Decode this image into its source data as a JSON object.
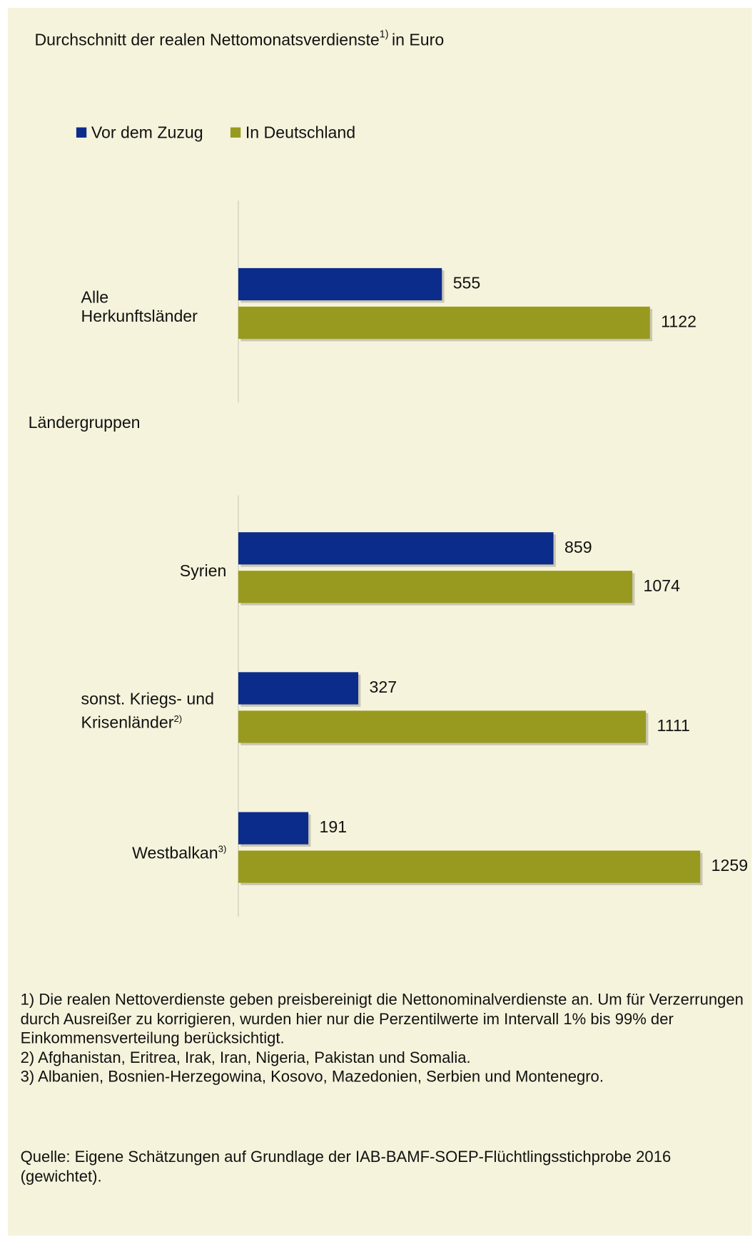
{
  "chart_data": [
    {
      "type": "hbar",
      "title": "Durchschnitt der realen Nettomonatsverdienste",
      "title_note": "1)",
      "title_unit": "in Euro",
      "categories": [
        "Alle Herkunftsländer"
      ],
      "category_notes": [
        null
      ],
      "series": [
        {
          "name": "Vor dem Zuzug",
          "color": "#0b2c8a",
          "values": [
            555
          ]
        },
        {
          "name": "In Deutschland",
          "color": "#989a1f",
          "values": [
            1122
          ]
        }
      ]
    },
    {
      "type": "hbar",
      "title": "Ländergruppen",
      "categories": [
        "Syrien",
        "sonst. Kriegs- und Krisenländer",
        "Westbalkan"
      ],
      "category_notes": [
        null,
        "2)",
        "3)"
      ],
      "series": [
        {
          "color": "#0b2c8a",
          "values": [
            859,
            327,
            191
          ]
        },
        {
          "color": "#989a1f",
          "values": [
            1074,
            1111,
            1259
          ]
        }
      ]
    }
  ],
  "footnotes": [
    "1) Die realen Nettoverdienste geben preisbereinigt die Nettonominalverdienste an. Um für Verzerrungen durch Ausreißer zu korrigieren, wurden hier nur die Perzentilwerte im Intervall 1% bis 99% der Einkommensverteilung berücksichtigt.",
    "2) Afghanistan, Eritrea, Irak, Iran, Nigeria, Pakistan und Somalia.",
    "3) Albanien, Bosnien-Herzegowina, Kosovo, Mazedonien, Serbien und Montenegro."
  ],
  "source": "Quelle: Eigene Schätzungen auf Grundlage der IAB-BAMF-SOEP-Flüchtlingsstichprobe 2016 (gewichtet)."
}
